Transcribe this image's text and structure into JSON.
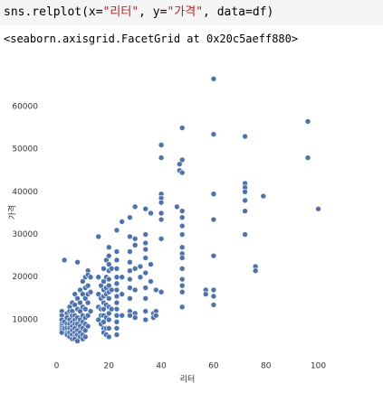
{
  "code": [
    "sns.relplot(x=",
    "\"리터\"",
    ", y=",
    "\"가격\"",
    ", data=df)"
  ],
  "output": "<seaborn.axisgrid.FacetGrid at 0x20c5aeff880>",
  "chart_data": {
    "type": "scatter",
    "xlabel": "리터",
    "ylabel": "가격",
    "color": "#4c72b0",
    "xlim": [
      -5,
      105
    ],
    "ylim": [
      1300,
      69100
    ],
    "xticks": [
      0,
      20,
      40,
      60,
      80,
      100
    ],
    "yticks": [
      10000,
      20000,
      30000,
      40000,
      50000,
      60000
    ],
    "x": [
      2,
      2,
      2,
      2,
      2,
      2,
      2,
      2,
      3,
      3,
      3,
      4,
      4,
      4,
      4,
      4,
      4,
      5,
      5,
      5,
      5,
      5,
      5,
      5,
      6,
      6,
      6,
      6,
      6,
      6,
      6,
      6,
      7,
      7,
      7,
      7,
      7,
      7,
      7,
      7,
      7,
      8,
      8,
      8,
      8,
      8,
      8,
      8,
      8,
      9,
      9,
      9,
      9,
      9,
      9,
      9,
      10,
      10,
      10,
      10,
      10,
      10,
      10,
      10,
      11,
      11,
      11,
      11,
      11,
      11,
      11,
      11,
      12,
      12,
      12,
      12,
      12,
      12,
      12,
      13,
      13,
      13,
      16,
      16,
      16,
      16,
      16,
      17,
      17,
      17,
      17,
      17,
      18,
      18,
      18,
      18,
      18,
      18,
      18,
      18,
      18,
      18,
      19,
      19,
      19,
      19,
      19,
      19,
      19,
      19,
      20,
      20,
      20,
      20,
      20,
      20,
      20,
      20,
      20,
      20,
      20,
      20,
      20,
      21,
      21,
      21,
      23,
      23,
      23,
      23,
      23,
      23,
      23,
      23,
      23,
      23,
      23,
      23,
      23,
      23,
      25,
      25,
      25,
      25,
      28,
      28,
      28,
      28,
      28,
      28,
      28,
      28,
      28,
      28,
      30,
      30,
      30,
      30,
      30,
      30,
      30,
      32,
      32,
      34,
      34,
      34,
      34,
      34,
      34,
      34,
      34,
      34,
      34,
      36,
      36,
      36,
      37,
      37,
      38,
      38,
      38,
      40,
      40,
      40,
      40,
      40,
      40,
      40,
      40,
      40,
      46,
      47,
      47,
      48,
      48,
      48,
      48,
      48,
      48,
      48,
      48,
      48,
      48,
      48,
      48,
      48,
      48,
      48,
      57,
      57,
      60,
      60,
      60,
      60,
      60,
      60,
      60,
      60,
      72,
      72,
      72,
      72,
      72,
      72,
      72,
      76,
      76,
      79,
      96,
      96,
      100
    ],
    "values": [
      12000,
      11000,
      10000,
      9000,
      8500,
      8000,
      7500,
      7000,
      24000,
      9500,
      8000,
      11500,
      10500,
      9000,
      8000,
      7000,
      6500,
      13000,
      12000,
      10000,
      9000,
      8000,
      7000,
      6000,
      14000,
      12000,
      11000,
      9500,
      8500,
      7500,
      6500,
      5500,
      16000,
      13500,
      11000,
      10000,
      9000,
      8000,
      7000,
      6000,
      5500,
      23500,
      15000,
      12500,
      10500,
      9000,
      7500,
      6500,
      5000,
      17000,
      14000,
      12000,
      10000,
      8500,
      7000,
      6000,
      19000,
      16000,
      13000,
      11000,
      9500,
      8000,
      6500,
      5500,
      20000,
      17500,
      15000,
      12500,
      10500,
      9000,
      7500,
      6000,
      21500,
      20500,
      18000,
      16000,
      14000,
      11000,
      8500,
      20000,
      16500,
      12000,
      29500,
      20000,
      16000,
      13000,
      10000,
      18000,
      15000,
      12500,
      11000,
      9000,
      22000,
      19000,
      17000,
      15500,
      14000,
      12500,
      11000,
      9500,
      8000,
      7000,
      24000,
      20000,
      17500,
      16000,
      13500,
      10500,
      8000,
      6500,
      27000,
      25000,
      23000,
      21500,
      19500,
      18000,
      16500,
      15000,
      13000,
      11500,
      10000,
      8000,
      6000,
      22000,
      17000,
      12500,
      31000,
      26000,
      24000,
      22000,
      20000,
      18500,
      17000,
      15500,
      14000,
      12500,
      11000,
      9500,
      8000,
      6500,
      33000,
      20000,
      16000,
      11000,
      34000,
      29500,
      26000,
      23500,
      21500,
      19500,
      17500,
      15000,
      12000,
      11000,
      36500,
      29000,
      27500,
      22000,
      17000,
      11500,
      10500,
      22500,
      20000,
      36000,
      30000,
      28000,
      26500,
      24500,
      21000,
      17500,
      15000,
      12000,
      10000,
      35000,
      23000,
      19000,
      11500,
      10500,
      17000,
      12000,
      11000,
      51000,
      48000,
      39500,
      38500,
      37500,
      35000,
      33500,
      29000,
      16500,
      36500,
      46500,
      45000,
      55000,
      47500,
      44500,
      35500,
      34000,
      32000,
      30000,
      27000,
      25500,
      24500,
      22000,
      19500,
      18000,
      16500,
      13000,
      17000,
      16000,
      66500,
      53500,
      39500,
      33500,
      25000,
      17000,
      15500,
      13500,
      53000,
      42000,
      41000,
      40000,
      38000,
      35500,
      30000,
      22500,
      21500,
      39000,
      56500,
      48000,
      36000
    ]
  }
}
